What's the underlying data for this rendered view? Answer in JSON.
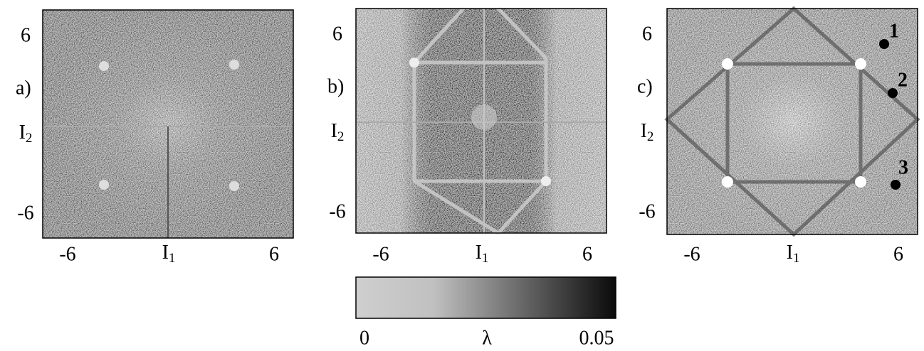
{
  "panels": [
    {
      "label": "a)",
      "y_ticks": [
        6,
        -6
      ],
      "y_axis": {
        "base": "I",
        "sub": "2"
      },
      "x_ticks": [
        -6,
        6
      ],
      "x_axis": {
        "base": "I",
        "sub": "1"
      }
    },
    {
      "label": "b)",
      "y_ticks": [
        6,
        -6
      ],
      "y_axis": {
        "base": "I",
        "sub": "2"
      },
      "x_ticks": [
        -6,
        6
      ],
      "x_axis": {
        "base": "I",
        "sub": "1"
      }
    },
    {
      "label": "c)",
      "y_ticks": [
        6,
        -6
      ],
      "y_axis": {
        "base": "I",
        "sub": "2"
      },
      "x_ticks": [
        -6,
        6
      ],
      "x_axis": {
        "base": "I",
        "sub": "1"
      },
      "points": [
        "1",
        "2",
        "3"
      ]
    }
  ],
  "colorbar": {
    "min": 0,
    "label": "λ",
    "max": 0.05
  }
}
